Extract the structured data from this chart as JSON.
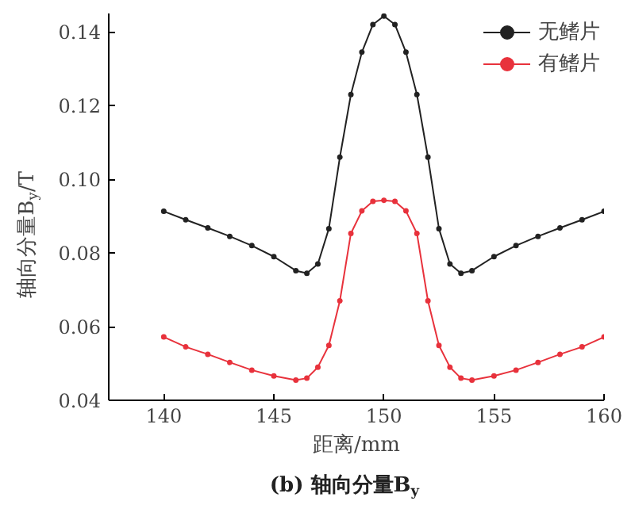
{
  "chart_data": {
    "type": "line",
    "xlabel": "距离/mm",
    "ylabel": "轴向分量B$_{y}$/T",
    "annotations": [
      "(b) 轴向分量B$_{y}$"
    ],
    "x": [
      140,
      141,
      142,
      143,
      144,
      145,
      146,
      146.5,
      147,
      147.5,
      148,
      148.5,
      149,
      149.5,
      150,
      150.5,
      151,
      151.5,
      152,
      152.5,
      153,
      153.5,
      154,
      155,
      156,
      157,
      158,
      159,
      160
    ],
    "series": [
      {
        "name": "无鳍片",
        "color": "#222222",
        "values": [
          0.0913,
          0.089,
          0.0868,
          0.0845,
          0.082,
          0.079,
          0.0752,
          0.0745,
          0.077,
          0.0866,
          0.106,
          0.123,
          0.1345,
          0.142,
          0.1443,
          0.142,
          0.1345,
          0.123,
          0.106,
          0.0866,
          0.077,
          0.0745,
          0.0752,
          0.079,
          0.082,
          0.0845,
          0.0868,
          0.089,
          0.0913
        ]
      },
      {
        "name": "有鳍片",
        "color": "#e8323c",
        "values": [
          0.0572,
          0.0545,
          0.0525,
          0.0503,
          0.0482,
          0.0466,
          0.0455,
          0.046,
          0.049,
          0.0549,
          0.067,
          0.0853,
          0.0914,
          0.094,
          0.0943,
          0.094,
          0.0914,
          0.0853,
          0.067,
          0.0549,
          0.049,
          0.046,
          0.0455,
          0.0466,
          0.0482,
          0.0503,
          0.0525,
          0.0545,
          0.0572
        ]
      }
    ],
    "xlim": [
      137.5,
      160
    ],
    "xticks": [
      140,
      145,
      150,
      155,
      160
    ],
    "ylim": [
      0.04,
      0.145
    ],
    "yticks": [
      {
        "value": 0.04,
        "label": "0.04"
      },
      {
        "value": 0.06,
        "label": "0.06"
      },
      {
        "value": 0.08,
        "label": "0.08"
      },
      {
        "value": 0.1,
        "label": "0.10"
      },
      {
        "value": 0.12,
        "label": "0.12"
      },
      {
        "value": 0.14,
        "label": "0.14"
      }
    ],
    "grid": false,
    "legend": "top right",
    "marker": "circle",
    "line_style": "solid"
  }
}
